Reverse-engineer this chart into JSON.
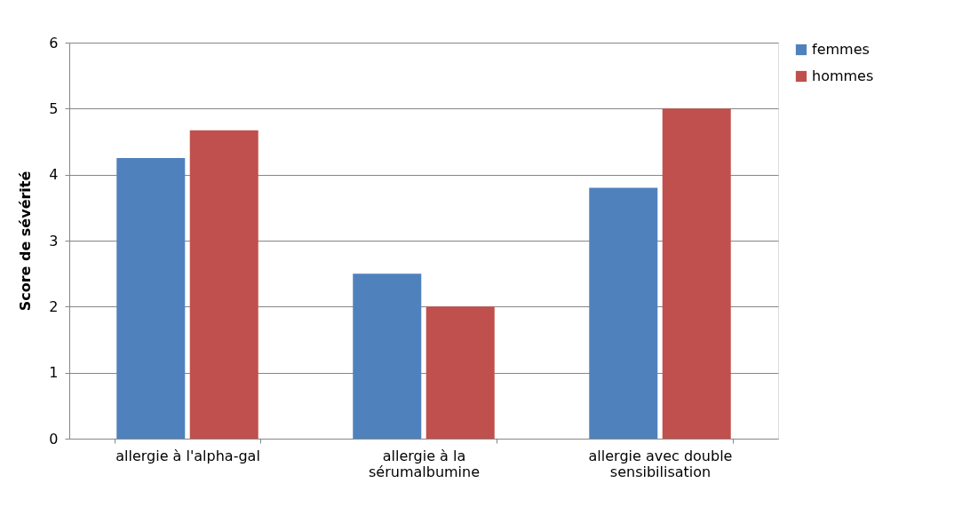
{
  "chart_data": {
    "type": "bar",
    "ylabel": "Score de sévérité",
    "categories": [
      "allergie à l'alpha-gal",
      "allergie à la sérumalbumine",
      "allergie avec double sensibilisation"
    ],
    "series": [
      {
        "name": "femmes",
        "color": "#4f81bd",
        "values": [
          4.25,
          2.5,
          3.8
        ]
      },
      {
        "name": "hommes",
        "color": "#c0504d",
        "values": [
          4.67,
          2.0,
          5.0
        ]
      }
    ],
    "ylim": [
      0,
      6
    ],
    "yticks": [
      0,
      1,
      2,
      3,
      4,
      5,
      6
    ],
    "grid": "y",
    "legend": "right"
  }
}
